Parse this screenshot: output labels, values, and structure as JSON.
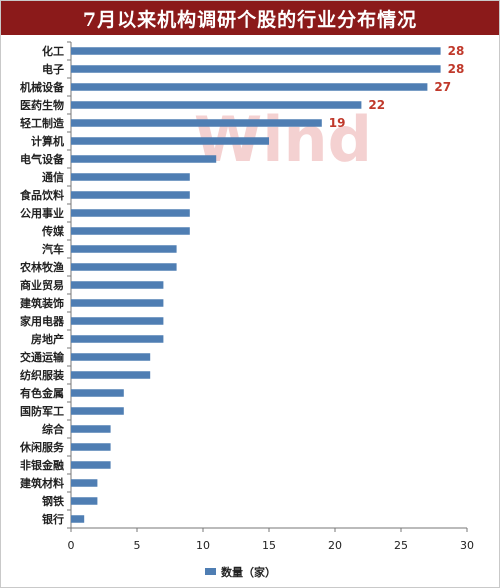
{
  "header": {
    "title": "7月以来机构调研个股的行业分布情况"
  },
  "watermark": "Wind",
  "colors": {
    "title_bg": "#8b1a1a",
    "bar": "#4f7eb3",
    "data_label": "#c0392b",
    "watermark": "#e07a7a"
  },
  "chart_data": {
    "type": "bar",
    "orientation": "horizontal",
    "title": "7月以来机构调研个股的行业分布情况",
    "categories": [
      "化工",
      "电子",
      "机械设备",
      "医药生物",
      "轻工制造",
      "计算机",
      "电气设备",
      "通信",
      "食品饮料",
      "公用事业",
      "传媒",
      "汽车",
      "农林牧渔",
      "商业贸易",
      "建筑装饰",
      "家用电器",
      "房地产",
      "交通运输",
      "纺织服装",
      "有色金属",
      "国防军工",
      "综合",
      "休闲服务",
      "非银金融",
      "建筑材料",
      "钢铁",
      "银行"
    ],
    "series": [
      {
        "name": "数量（家）",
        "values": [
          28,
          28,
          27,
          22,
          19,
          15,
          11,
          9,
          9,
          9,
          9,
          8,
          8,
          7,
          7,
          7,
          7,
          6,
          6,
          4,
          4,
          3,
          3,
          3,
          2,
          2,
          1
        ]
      }
    ],
    "data_labels": [
      {
        "category": "化工",
        "text": "28"
      },
      {
        "category": "电子",
        "text": "28"
      },
      {
        "category": "机械设备",
        "text": "27"
      },
      {
        "category": "医药生物",
        "text": "22"
      },
      {
        "category": "轻工制造",
        "text": "19"
      }
    ],
    "xlim": [
      0,
      30
    ],
    "xticks": [
      "0",
      "5",
      "10",
      "15",
      "20",
      "25",
      "30"
    ],
    "grid": false,
    "legend": "bottom"
  }
}
